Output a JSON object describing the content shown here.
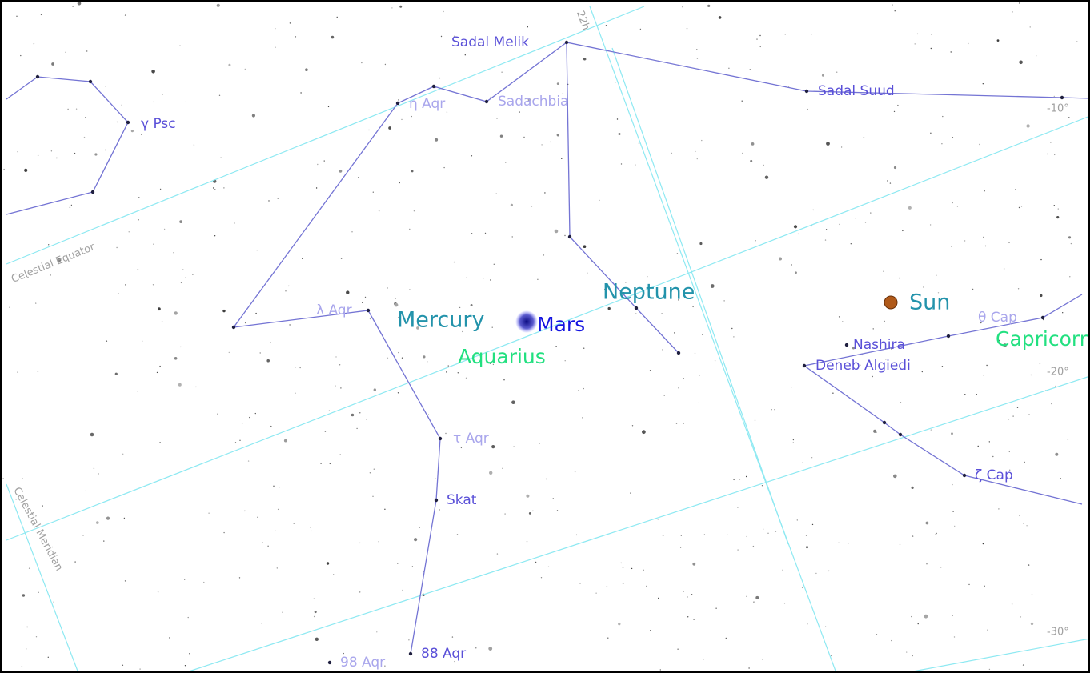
{
  "stars": [
    {
      "label": "Sadal Melik"
    },
    {
      "label": "Sadal Suud"
    },
    {
      "label": "η Aqr"
    },
    {
      "label": "Sadachbia"
    },
    {
      "label": "γ Psc"
    },
    {
      "label": "λ Aqr"
    },
    {
      "label": "τ Aqr"
    },
    {
      "label": "Skat"
    },
    {
      "label": "88 Aqr"
    },
    {
      "label": "98 Aqr"
    },
    {
      "label": "Nashira"
    },
    {
      "label": "Deneb Algiedi"
    },
    {
      "label": "θ Cap"
    },
    {
      "label": "ζ Cap"
    }
  ],
  "planets": [
    {
      "label": "Mercury"
    },
    {
      "label": "Mars"
    },
    {
      "label": "Neptune"
    },
    {
      "label": "Sun"
    }
  ],
  "constellations": [
    {
      "label": "Aquarius"
    },
    {
      "label": "Capricornus"
    }
  ],
  "grid_labels": [
    {
      "label": "22h"
    },
    {
      "label": "-10°"
    },
    {
      "label": "-20°"
    },
    {
      "label": "-30°"
    },
    {
      "label": "Celestial Equator"
    },
    {
      "label": "Celestial Meridian"
    }
  ]
}
